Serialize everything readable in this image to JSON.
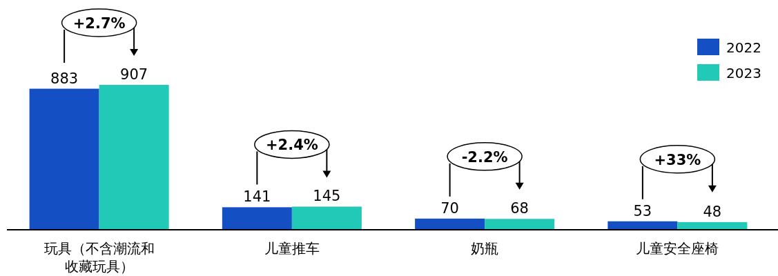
{
  "chart_data": {
    "type": "bar",
    "categories": [
      "玩具（不含潮流和收藏玩具）",
      "儿童推车",
      "奶瓶",
      "儿童安全座椅"
    ],
    "series": [
      {
        "name": "2022",
        "color": "#1450c4",
        "values": [
          883,
          141,
          70,
          53
        ]
      },
      {
        "name": "2023",
        "color": "#22c9b6",
        "values": [
          907,
          145,
          68,
          48
        ]
      }
    ],
    "data_labels": true,
    "legend": "top right",
    "annotations": [
      "+2.7%",
      "+2.4%",
      "-2.2%",
      "+33%"
    ]
  }
}
